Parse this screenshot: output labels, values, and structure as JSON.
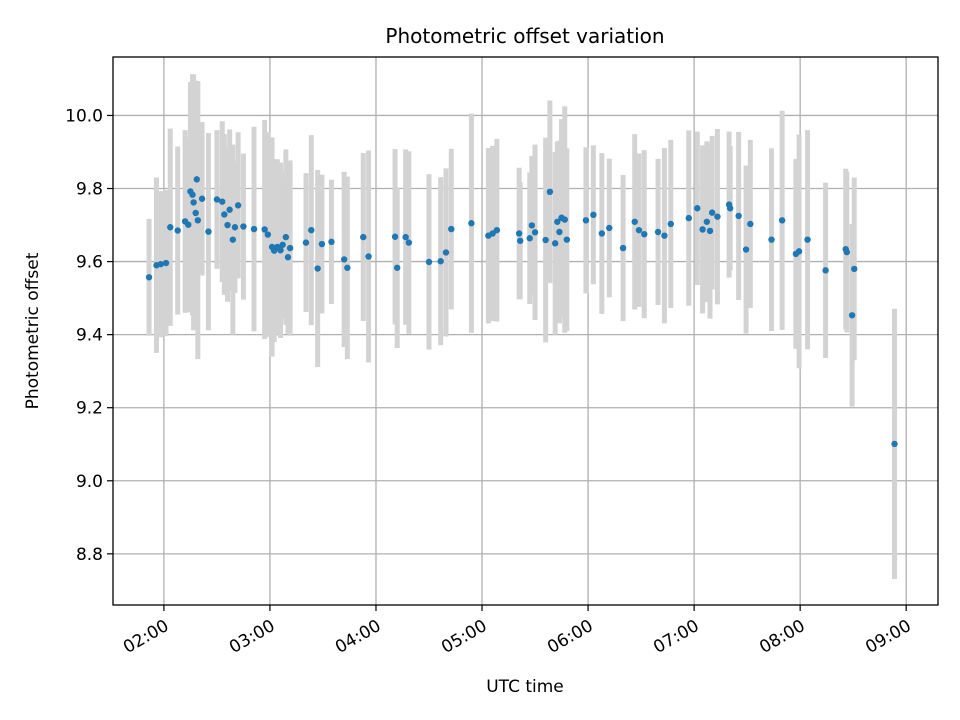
{
  "chart_data": {
    "type": "scatter",
    "title": "Photometric offset variation",
    "xlabel": "UTC time",
    "ylabel": "Photometric offset",
    "x_unit": "hours",
    "xlim": [
      1.52,
      9.3
    ],
    "ylim": [
      8.66,
      10.16
    ],
    "xticks": [
      2,
      3,
      4,
      5,
      6,
      7,
      8,
      9
    ],
    "xtick_labels": [
      "02:00",
      "03:00",
      "04:00",
      "05:00",
      "06:00",
      "07:00",
      "08:00",
      "09:00"
    ],
    "yticks": [
      8.8,
      9.0,
      9.2,
      9.4,
      9.6,
      9.8,
      10.0
    ],
    "ytick_labels": [
      "8.8",
      "9.0",
      "9.2",
      "9.4",
      "9.6",
      "9.8",
      "10.0"
    ],
    "grid": true,
    "colors": {
      "points": "#1f77b4",
      "errorbars": "#d3d3d3",
      "grid": "#b0b0b0"
    },
    "series": [
      {
        "points": [
          [
            1.86,
            9.557,
            0.16
          ],
          [
            1.93,
            9.59,
            0.24
          ],
          [
            1.97,
            9.593,
            0.2
          ],
          [
            2.02,
            9.596,
            0.2
          ],
          [
            2.06,
            9.694,
            0.27
          ],
          [
            2.13,
            9.685,
            0.23
          ],
          [
            2.2,
            9.71,
            0.25
          ],
          [
            2.23,
            9.701,
            0.24
          ],
          [
            2.25,
            9.792,
            0.3
          ],
          [
            2.27,
            9.783,
            0.33
          ],
          [
            2.28,
            9.762,
            0.35
          ],
          [
            2.3,
            9.733,
            0.3
          ],
          [
            2.31,
            9.825,
            0.27
          ],
          [
            2.32,
            9.713,
            0.38
          ],
          [
            2.36,
            9.772,
            0.21
          ],
          [
            2.42,
            9.682,
            0.27
          ],
          [
            2.5,
            9.77,
            0.19
          ],
          [
            2.55,
            9.764,
            0.22
          ],
          [
            2.57,
            9.729,
            0.22
          ],
          [
            2.6,
            9.7,
            0.21
          ],
          [
            2.62,
            9.742,
            0.22
          ],
          [
            2.65,
            9.66,
            0.26
          ],
          [
            2.67,
            9.694,
            0.18
          ],
          [
            2.7,
            9.754,
            0.2
          ],
          [
            2.75,
            9.696,
            0.2
          ],
          [
            2.85,
            9.689,
            0.28
          ],
          [
            2.95,
            9.688,
            0.3
          ],
          [
            2.98,
            9.674,
            0.28
          ],
          [
            3.02,
            9.64,
            0.3
          ],
          [
            3.04,
            9.63,
            0.25
          ],
          [
            3.07,
            9.64,
            0.24
          ],
          [
            3.1,
            9.631,
            0.24
          ],
          [
            3.12,
            9.646,
            0.2
          ],
          [
            3.15,
            9.667,
            0.24
          ],
          [
            3.17,
            9.612,
            0.21
          ],
          [
            3.19,
            9.637,
            0.24
          ],
          [
            3.34,
            9.652,
            0.19
          ],
          [
            3.39,
            9.686,
            0.26
          ],
          [
            3.45,
            9.581,
            0.27
          ],
          [
            3.49,
            9.648,
            0.19
          ],
          [
            3.58,
            9.654,
            0.17
          ],
          [
            3.7,
            9.606,
            0.24
          ],
          [
            3.73,
            9.583,
            0.25
          ],
          [
            3.88,
            9.667,
            0.23
          ],
          [
            3.93,
            9.614,
            0.29
          ],
          [
            4.18,
            9.668,
            0.24
          ],
          [
            4.2,
            9.583,
            0.22
          ],
          [
            4.28,
            9.667,
            0.24
          ],
          [
            4.31,
            9.652,
            0.25
          ],
          [
            4.5,
            9.599,
            0.24
          ],
          [
            4.61,
            9.601,
            0.23
          ],
          [
            4.66,
            9.625,
            0.23
          ],
          [
            4.71,
            9.689,
            0.22
          ],
          [
            4.9,
            9.705,
            0.3
          ],
          [
            5.06,
            9.671,
            0.24
          ],
          [
            5.1,
            9.677,
            0.24
          ],
          [
            5.14,
            9.686,
            0.25
          ],
          [
            5.35,
            9.677,
            0.18
          ],
          [
            5.36,
            9.657,
            0.16
          ],
          [
            5.45,
            9.664,
            0.18
          ],
          [
            5.47,
            9.699,
            0.19
          ],
          [
            5.5,
            9.68,
            0.24
          ],
          [
            5.6,
            9.659,
            0.28
          ],
          [
            5.64,
            9.791,
            0.25
          ],
          [
            5.69,
            9.65,
            0.25
          ],
          [
            5.71,
            9.709,
            0.22
          ],
          [
            5.73,
            9.681,
            0.25
          ],
          [
            5.75,
            9.72,
            0.27
          ],
          [
            5.78,
            9.715,
            0.31
          ],
          [
            5.8,
            9.66,
            0.25
          ],
          [
            5.98,
            9.713,
            0.2
          ],
          [
            6.05,
            9.728,
            0.19
          ],
          [
            6.13,
            9.677,
            0.22
          ],
          [
            6.2,
            9.692,
            0.19
          ],
          [
            6.33,
            9.637,
            0.2
          ],
          [
            6.44,
            9.709,
            0.24
          ],
          [
            6.48,
            9.686,
            0.21
          ],
          [
            6.53,
            9.675,
            0.23
          ],
          [
            6.66,
            9.681,
            0.2
          ],
          [
            6.72,
            9.671,
            0.24
          ],
          [
            6.78,
            9.703,
            0.23
          ],
          [
            6.95,
            9.719,
            0.24
          ],
          [
            7.03,
            9.746,
            0.21
          ],
          [
            7.08,
            9.688,
            0.23
          ],
          [
            7.12,
            9.709,
            0.22
          ],
          [
            7.15,
            9.684,
            0.24
          ],
          [
            7.17,
            9.734,
            0.21
          ],
          [
            7.22,
            9.723,
            0.24
          ],
          [
            7.33,
            9.756,
            0.2
          ],
          [
            7.34,
            9.746,
            0.17
          ],
          [
            7.42,
            9.725,
            0.23
          ],
          [
            7.49,
            9.633,
            0.23
          ],
          [
            7.53,
            9.703,
            0.23
          ],
          [
            7.73,
            9.66,
            0.25
          ],
          [
            7.83,
            9.713,
            0.3
          ],
          [
            7.96,
            9.621,
            0.26
          ],
          [
            7.99,
            9.628,
            0.32
          ],
          [
            8.07,
            9.66,
            0.3
          ],
          [
            8.24,
            9.576,
            0.24
          ],
          [
            8.43,
            9.634,
            0.22
          ],
          [
            8.44,
            9.626,
            0.22
          ],
          [
            8.49,
            9.453,
            0.25
          ],
          [
            8.51,
            9.58,
            0.25
          ],
          [
            8.89,
            9.101,
            0.37
          ]
        ]
      }
    ]
  }
}
